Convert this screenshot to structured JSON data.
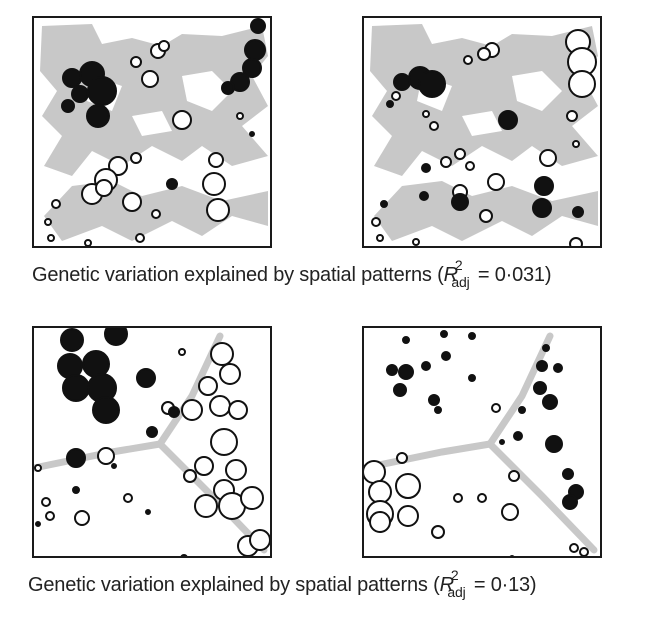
{
  "colors": {
    "frame": "#1a1a1a",
    "landscape": "#c8c8c8",
    "filled_point": "#111111",
    "open_point": "#ffffff"
  },
  "figure": {
    "top_row": {
      "caption": {
        "prefix": "Genetic variation explained by spatial patterns (",
        "r": "R",
        "sup": "2",
        "sub": "adj",
        "equals": " = 0·031)"
      }
    },
    "bottom_row": {
      "caption": {
        "prefix": "Genetic variation explained by spatial patterns (",
        "r": "R",
        "sup": "2",
        "sub": "adj",
        "equals": " = 0·13)"
      }
    }
  }
}
